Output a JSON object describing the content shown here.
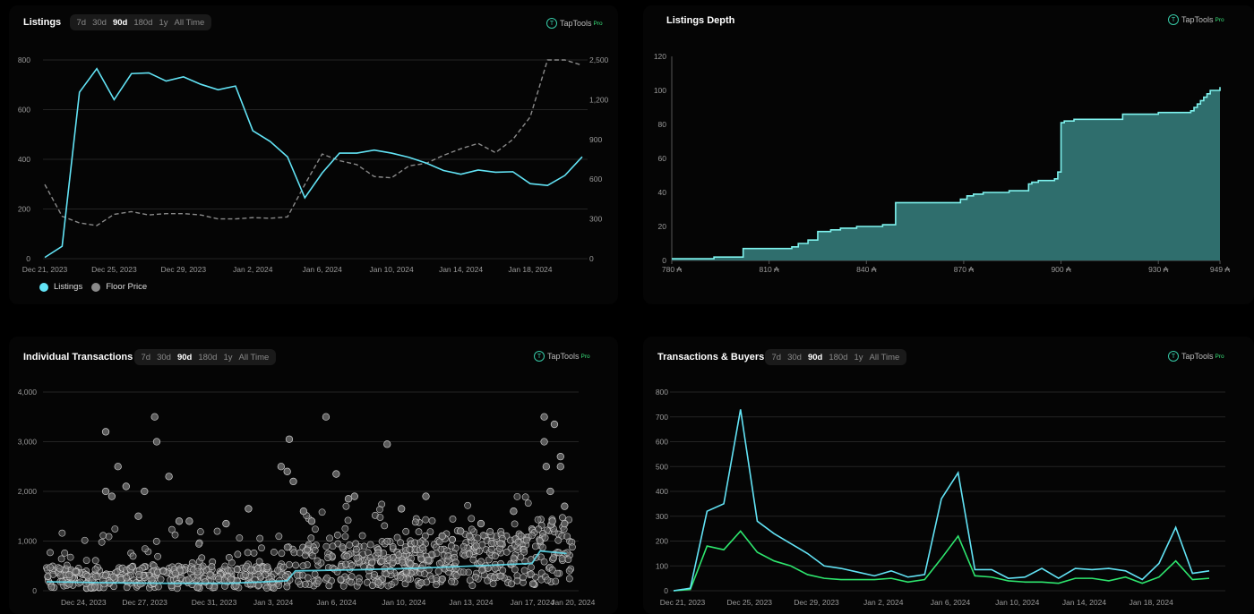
{
  "brand": {
    "name": "TapTools",
    "tier": "Pro"
  },
  "timeframes": [
    "7d",
    "30d",
    "90d",
    "180d",
    "1y",
    "All Time"
  ],
  "active_timeframe": "90d",
  "colors": {
    "cyan": "#62e3f5",
    "gray": "#8a8a8a",
    "green": "#2ee66e",
    "teal_fill": "#2f6e6d",
    "teal_line": "#7ff3ee"
  },
  "listings": {
    "title": "Listings",
    "legend": [
      "Listings",
      "Floor Price"
    ]
  },
  "depth": {
    "title": "Listings Depth"
  },
  "individual": {
    "title": "Individual Transactions"
  },
  "txbuyers": {
    "title": "Transactions & Buyers"
  },
  "chart_data": [
    {
      "id": "listings",
      "type": "line",
      "title": "Listings",
      "x_ticks": [
        "Dec 21, 2023",
        "Dec 25, 2023",
        "Dec 29, 2023",
        "Jan 2, 2024",
        "Jan 6, 2024",
        "Jan 10, 2024",
        "Jan 14, 2024",
        "Jan 18, 2024"
      ],
      "ylim": [
        0,
        800
      ],
      "y_ticks": [
        0,
        200,
        400,
        600,
        800
      ],
      "y2lim": [
        0,
        1500
      ],
      "y2_ticks": [
        0,
        300,
        600,
        900,
        1200,
        1500
      ],
      "series": [
        {
          "name": "Listings",
          "axis": "left",
          "values": [
            5,
            50,
            670,
            765,
            640,
            745,
            748,
            715,
            732,
            702,
            680,
            695,
            515,
            472,
            410,
            245,
            345,
            425,
            425,
            437,
            425,
            408,
            385,
            355,
            340,
            357,
            348,
            350,
            302,
            295,
            335,
            410
          ]
        },
        {
          "name": "Floor Price",
          "axis": "right",
          "values": [
            560,
            320,
            270,
            250,
            335,
            355,
            330,
            340,
            340,
            330,
            300,
            300,
            310,
            305,
            315,
            560,
            790,
            740,
            710,
            620,
            610,
            700,
            720,
            780,
            830,
            870,
            800,
            900,
            1070,
            1500,
            1500,
            1460
          ]
        }
      ]
    },
    {
      "id": "depth",
      "type": "area",
      "title": "Listings Depth",
      "x_ticks": [
        "780 ₳",
        "810 ₳",
        "840 ₳",
        "870 ₳",
        "900 ₳",
        "930 ₳",
        "949 ₳"
      ],
      "xlim": [
        780,
        949
      ],
      "ylim": [
        0,
        120
      ],
      "y_ticks": [
        0,
        20,
        40,
        60,
        80,
        100,
        120
      ],
      "points": [
        [
          780,
          1
        ],
        [
          793,
          2
        ],
        [
          802,
          7
        ],
        [
          817,
          8
        ],
        [
          819,
          10
        ],
        [
          822,
          12
        ],
        [
          825,
          17
        ],
        [
          829,
          18
        ],
        [
          832,
          19
        ],
        [
          837,
          20
        ],
        [
          845,
          21
        ],
        [
          849,
          34
        ],
        [
          869,
          36
        ],
        [
          871,
          38
        ],
        [
          873,
          39
        ],
        [
          876,
          40
        ],
        [
          884,
          41
        ],
        [
          890,
          45
        ],
        [
          891,
          46
        ],
        [
          893,
          47
        ],
        [
          898,
          48
        ],
        [
          899,
          52
        ],
        [
          900,
          81
        ],
        [
          901,
          82
        ],
        [
          904,
          83
        ],
        [
          919,
          86
        ],
        [
          930,
          87
        ],
        [
          940,
          88
        ],
        [
          941,
          90
        ],
        [
          942,
          92
        ],
        [
          943,
          94
        ],
        [
          944,
          96
        ],
        [
          945,
          98
        ],
        [
          946,
          100
        ],
        [
          949,
          102
        ]
      ]
    },
    {
      "id": "individual",
      "type": "scatter",
      "title": "Individual Transactions",
      "x_ticks": [
        "Dec 24, 2023",
        "Dec 27, 2023",
        "Dec 31, 2023",
        "Jan 3, 2024",
        "Jan 6, 2024",
        "Jan 10, 2024",
        "Jan 13, 2024",
        "Jan 17, 2024",
        "Jan 20, 2024"
      ],
      "ylim": [
        0,
        4000
      ],
      "y_ticks": [
        0,
        1000,
        2000,
        3000,
        4000
      ],
      "outliers": [
        [
          2.9,
          3200
        ],
        [
          5.3,
          3500
        ],
        [
          5.4,
          3000
        ],
        [
          3.5,
          2500
        ],
        [
          3.9,
          2100
        ],
        [
          6.0,
          2300
        ],
        [
          2.9,
          2000
        ],
        [
          4.8,
          2000
        ],
        [
          11.9,
          3050
        ],
        [
          13.7,
          3500
        ],
        [
          16.7,
          2950
        ],
        [
          24.4,
          3500
        ],
        [
          24.4,
          3000
        ],
        [
          24.9,
          3350
        ],
        [
          24.5,
          2500
        ],
        [
          25.2,
          2700
        ],
        [
          25.2,
          2500
        ],
        [
          11.5,
          2500
        ],
        [
          11.8,
          2400
        ],
        [
          12.1,
          2200
        ],
        [
          14.2,
          2350
        ],
        [
          15.1,
          1900
        ],
        [
          17.4,
          1650
        ],
        [
          18.6,
          1900
        ],
        [
          22.9,
          1600
        ],
        [
          24.7,
          2000
        ],
        [
          25.4,
          1700
        ],
        [
          3.2,
          1900
        ],
        [
          4.5,
          1500
        ],
        [
          7.0,
          1400
        ],
        [
          9.9,
          1650
        ],
        [
          12.6,
          1600
        ],
        [
          21.3,
          1350
        ],
        [
          25.4,
          1350
        ],
        [
          6.5,
          1400
        ],
        [
          8.8,
          1350
        ],
        [
          13.0,
          1400
        ],
        [
          14.8,
          1850
        ],
        [
          24.8,
          1400
        ],
        [
          19.4,
          1100
        ],
        [
          20.3,
          1200
        ]
      ],
      "trend": [
        [
          0,
          180
        ],
        [
          3,
          160
        ],
        [
          6,
          150
        ],
        [
          9,
          150
        ],
        [
          11.8,
          200
        ],
        [
          12.2,
          400
        ],
        [
          15,
          420
        ],
        [
          18,
          450
        ],
        [
          21,
          500
        ],
        [
          23.8,
          550
        ],
        [
          24.2,
          800
        ],
        [
          25.5,
          750
        ]
      ]
    },
    {
      "id": "txbuyers",
      "type": "line",
      "title": "Transactions & Buyers",
      "x_ticks": [
        "Dec 21, 2023",
        "Dec 25, 2023",
        "Dec 29, 2023",
        "Jan 2, 2024",
        "Jan 6, 2024",
        "Jan 10, 2024",
        "Jan 14, 2024",
        "Jan 18, 2024"
      ],
      "ylim": [
        0,
        800
      ],
      "y_ticks": [
        0,
        100,
        200,
        300,
        400,
        500,
        600,
        700,
        800
      ],
      "series": [
        {
          "name": "Transactions",
          "values": [
            0,
            10,
            320,
            350,
            730,
            280,
            230,
            190,
            150,
            100,
            90,
            75,
            60,
            80,
            55,
            65,
            370,
            475,
            85,
            85,
            50,
            55,
            90,
            50,
            90,
            85,
            90,
            80,
            45,
            110,
            255,
            70,
            80
          ]
        },
        {
          "name": "Buyers",
          "values": [
            0,
            5,
            180,
            165,
            240,
            155,
            120,
            100,
            65,
            50,
            45,
            45,
            45,
            50,
            35,
            45,
            130,
            220,
            60,
            55,
            40,
            35,
            35,
            30,
            50,
            50,
            40,
            55,
            30,
            55,
            120,
            45,
            50
          ]
        }
      ]
    }
  ]
}
